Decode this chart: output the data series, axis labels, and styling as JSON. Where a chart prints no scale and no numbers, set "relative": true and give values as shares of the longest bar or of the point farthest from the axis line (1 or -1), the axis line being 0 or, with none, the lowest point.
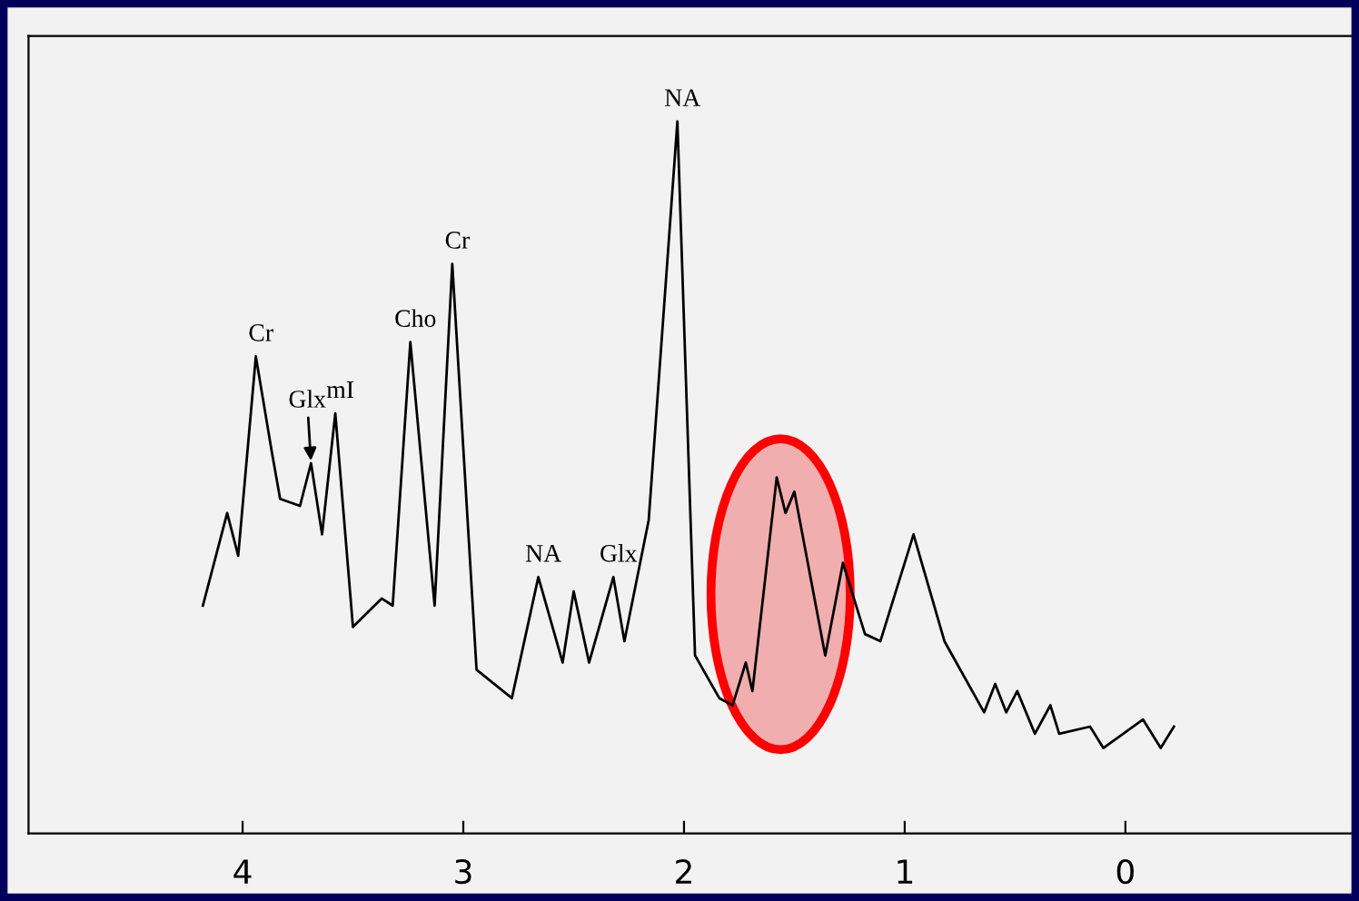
{
  "chart_data": {
    "type": "line",
    "relative": true,
    "color": "#000000",
    "tick_labels": "x",
    "grid": false,
    "legend": false,
    "marker": "none",
    "line_style": "solid",
    "xlim": [
      4.97,
      -1.04
    ],
    "xticks": [
      4,
      3,
      2,
      1,
      0
    ],
    "x": [
      4.18,
      4.07,
      4.02,
      3.94,
      3.87,
      3.83,
      3.74,
      3.69,
      3.64,
      3.58,
      3.5,
      3.37,
      3.32,
      3.24,
      3.13,
      3.05,
      2.94,
      2.78,
      2.66,
      2.55,
      2.5,
      2.43,
      2.32,
      2.27,
      2.16,
      2.03,
      1.95,
      1.84,
      1.78,
      1.72,
      1.69,
      1.58,
      1.54,
      1.5,
      1.36,
      1.28,
      1.18,
      1.11,
      0.96,
      0.82,
      0.64,
      0.59,
      0.54,
      0.49,
      0.41,
      0.34,
      0.3,
      0.16,
      0.1,
      -0.08,
      -0.16,
      -0.22
    ],
    "values": [
      0.32,
      0.45,
      0.39,
      0.67,
      0.54,
      0.47,
      0.46,
      0.52,
      0.42,
      0.59,
      0.29,
      0.33,
      0.32,
      0.69,
      0.32,
      0.8,
      0.23,
      0.19,
      0.36,
      0.24,
      0.34,
      0.24,
      0.36,
      0.27,
      0.44,
      1.0,
      0.25,
      0.19,
      0.18,
      0.24,
      0.2,
      0.5,
      0.45,
      0.48,
      0.25,
      0.38,
      0.28,
      0.27,
      0.42,
      0.27,
      0.17,
      0.21,
      0.17,
      0.2,
      0.14,
      0.18,
      0.14,
      0.15,
      0.12,
      0.16,
      0.12,
      0.15
    ],
    "annotations": [
      {
        "text": "Cr",
        "x": 3.94,
        "y": 0.67
      },
      {
        "text": "mI",
        "x": 3.58,
        "y": 0.59
      },
      {
        "text": "Glx",
        "x": 3.69,
        "y": 0.52
      },
      {
        "text": "Cho",
        "x": 3.24,
        "y": 0.69
      },
      {
        "text": "Cr",
        "x": 3.05,
        "y": 0.8
      },
      {
        "text": "NA",
        "x": 2.66,
        "y": 0.36
      },
      {
        "text": "Glx",
        "x": 2.32,
        "y": 0.36
      },
      {
        "text": "NA",
        "x": 2.03,
        "y": 1.0
      }
    ]
  }
}
